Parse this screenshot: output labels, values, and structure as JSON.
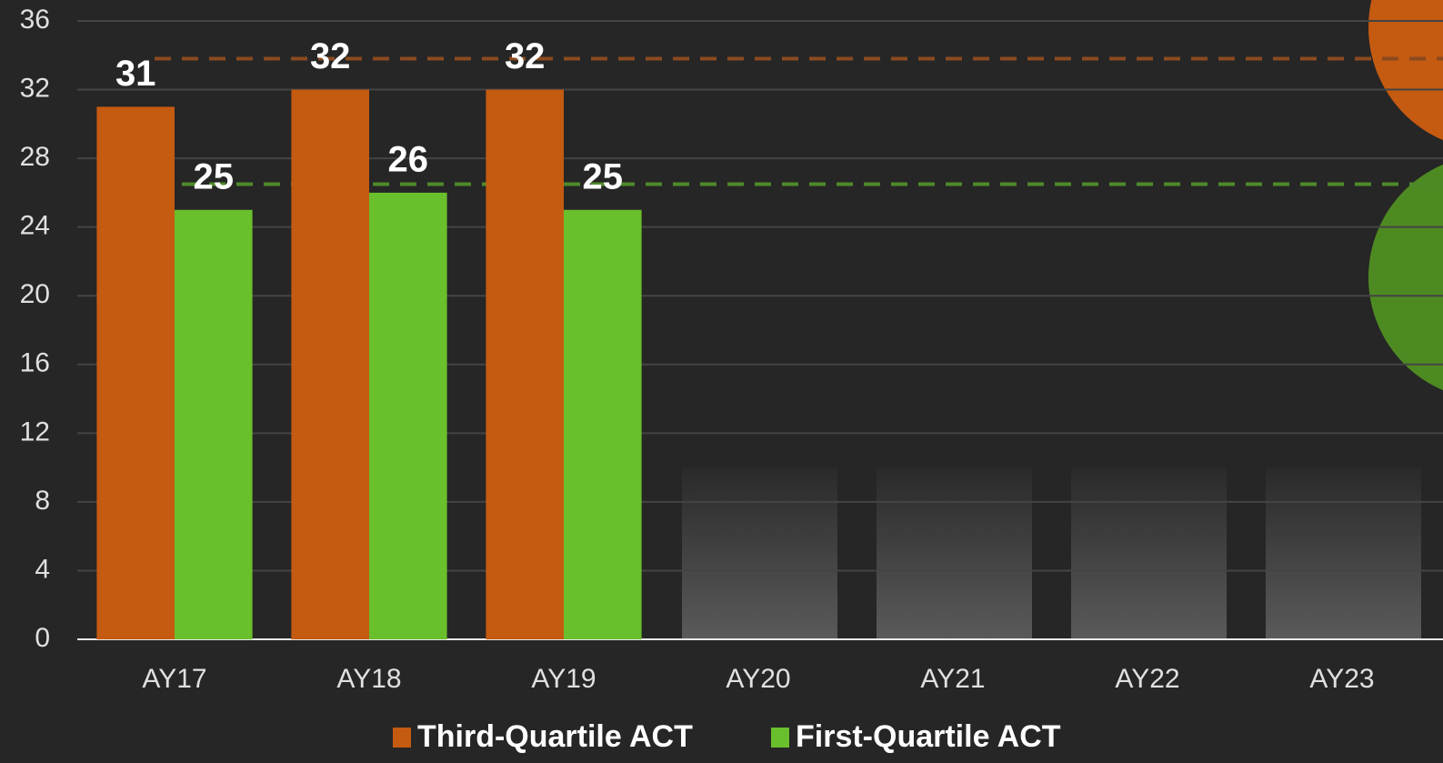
{
  "chart_data": {
    "type": "bar",
    "categories": [
      "AY17",
      "AY18",
      "AY19",
      "AY20",
      "AY21",
      "AY22",
      "AY23"
    ],
    "series": [
      {
        "name": "Third-Quartile ACT",
        "color": "#c55a11",
        "values": [
          31,
          32,
          32,
          null,
          null,
          null,
          null
        ]
      },
      {
        "name": "First-Quartile ACT",
        "color": "#6abf2c",
        "values": [
          25,
          26,
          25,
          null,
          null,
          null,
          null
        ]
      }
    ],
    "reference_lines": [
      {
        "value": 33.8,
        "color": "#8a4a20"
      },
      {
        "value": 26.5,
        "color": "#4e8a2a"
      }
    ],
    "ylim": [
      0,
      36
    ],
    "yticks": [
      0,
      4,
      8,
      12,
      16,
      20,
      24,
      28,
      32,
      36
    ],
    "grid": true,
    "legend": "bottom"
  }
}
